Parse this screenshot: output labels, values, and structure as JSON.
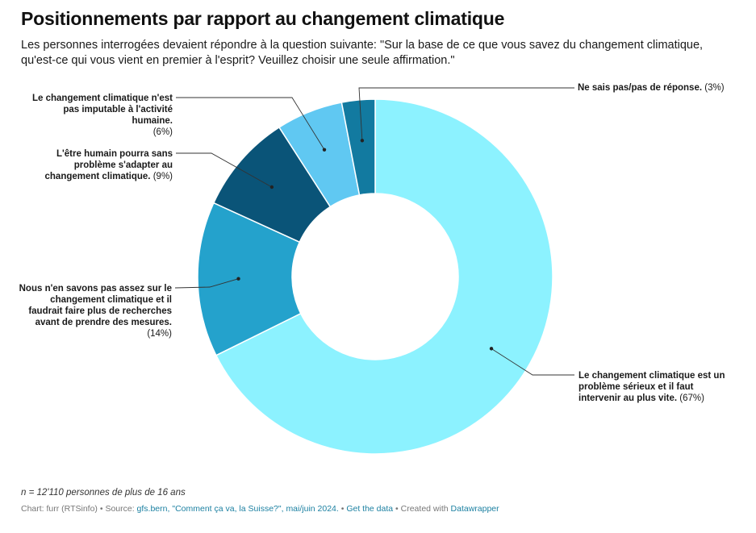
{
  "title": "Positionnements par rapport au changement climatique",
  "subtitle": "Les personnes interrogées devaient répondre à la question suivante: \"Sur la base de ce que vous savez du changement climatique, qu'est-ce qui vous vient en premier à l'esprit? Veuillez choisir une seule affirmation.\"",
  "chart_data": {
    "type": "pie",
    "donut": true,
    "slices": [
      {
        "label": "Le changement climatique est un problème sérieux et il faut intervenir au plus vite.",
        "value": 67,
        "value_label": "(67%)",
        "color": "#8cf2ff"
      },
      {
        "label": "Nous n'en savons pas assez sur le changement climatique et il faudrait faire plus de recherches avant de prendre des mesures.",
        "value": 14,
        "value_label": "(14%)",
        "color": "#24a2cc"
      },
      {
        "label": "L'être humain pourra sans problème s'adapter au changement climatique.",
        "value": 9,
        "value_label": "(9%)",
        "color": "#0a5478"
      },
      {
        "label": "Le changement climatique n'est pas imputable à l'activité humaine.",
        "value": 6,
        "value_label": "(6%)",
        "color": "#60c8f2"
      },
      {
        "label": "Ne sais pas/pas de réponse.",
        "value": 3,
        "value_label": "(3%)",
        "color": "#127aa0"
      }
    ]
  },
  "note": "n = 12'110 personnes de plus de 16 ans",
  "footer": {
    "chart_by": "Chart: furr (RTSinfo)",
    "sep": " • ",
    "source_prefix": "Source: ",
    "source_org": "gfs.bern",
    "source_sep": ", ",
    "source_title": "\"Comment ça va, la Suisse?\", mai/juin 2024.",
    "get_data": "Get the data",
    "created_with": "Created with ",
    "tool": "Datawrapper"
  }
}
